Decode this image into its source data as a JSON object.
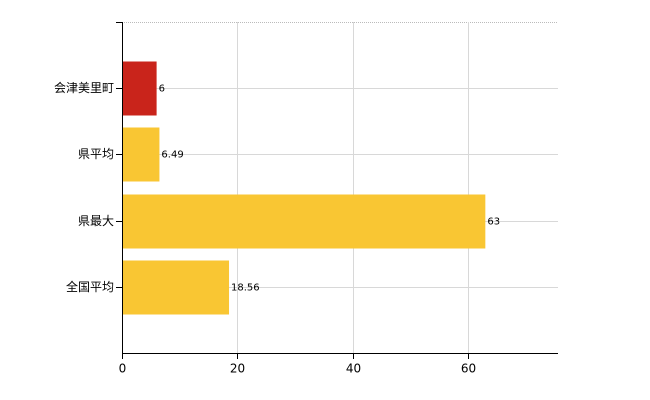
{
  "chart_data": {
    "type": "hbar",
    "categories": [
      "会津美里町",
      "県平均",
      "県最大",
      "全国平均"
    ],
    "values": [
      6,
      6.49,
      63,
      18.56
    ],
    "colors": [
      "#c9241b",
      "#f9c633",
      "#f9c633",
      "#f9c633"
    ],
    "xlim": [
      0,
      75.6
    ],
    "xticks": [
      0,
      20,
      40,
      60
    ],
    "grid": true
  }
}
